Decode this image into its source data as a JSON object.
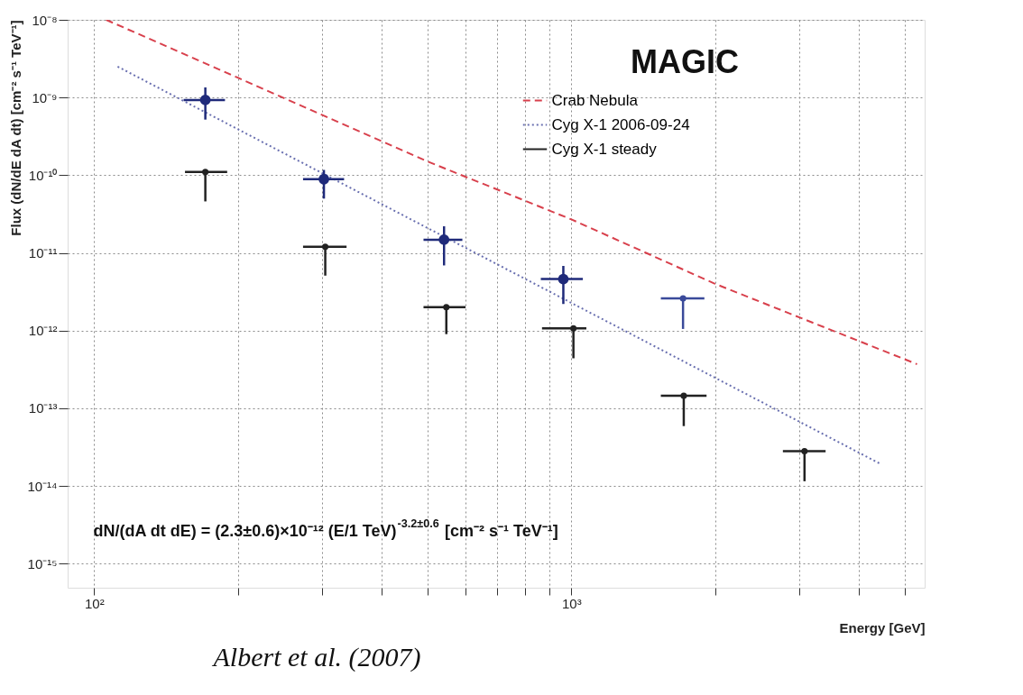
{
  "chart_data": {
    "type": "scatter",
    "title": "MAGIC",
    "xlabel": "Energy [GeV]",
    "ylabel": "Flux (dN/dE dA dt) [cm⁻² s⁻¹ TeV⁻¹]",
    "log": "xy",
    "grid": true,
    "legend": "top right",
    "xlim": [
      88,
      5500
    ],
    "ylim": [
      4.9e-16,
      1e-08
    ],
    "xticks": [
      {
        "value": 100,
        "label": "10²"
      },
      {
        "value": 200,
        "label": null
      },
      {
        "value": 300,
        "label": null
      },
      {
        "value": 400,
        "label": null
      },
      {
        "value": 500,
        "label": null
      },
      {
        "value": 600,
        "label": null
      },
      {
        "value": 700,
        "label": null
      },
      {
        "value": 800,
        "label": null
      },
      {
        "value": 900,
        "label": null
      },
      {
        "value": 1000,
        "label": "10³"
      },
      {
        "value": 2000,
        "label": null
      },
      {
        "value": 3000,
        "label": null
      },
      {
        "value": 4000,
        "label": null
      },
      {
        "value": 5000,
        "label": null
      }
    ],
    "yticks": [
      {
        "value": 1e-08,
        "label": "10⁻⁸"
      },
      {
        "value": 1e-09,
        "label": "10⁻⁹"
      },
      {
        "value": 1e-10,
        "label": "10⁻¹⁰"
      },
      {
        "value": 1e-11,
        "label": "10⁻¹¹"
      },
      {
        "value": 1e-12,
        "label": "10⁻¹²"
      },
      {
        "value": 1e-13,
        "label": "10⁻¹³"
      },
      {
        "value": 1e-14,
        "label": "10⁻¹⁴"
      },
      {
        "value": 1e-15,
        "label": "10⁻¹⁵"
      }
    ],
    "series": [
      {
        "name": "Crab Nebula",
        "type": "line",
        "color": "#d8404c",
        "line_style": "dashed",
        "x": [
          106,
          200,
          500,
          1000,
          2000,
          5300
        ],
        "values": [
          1e-08,
          1.8e-09,
          1.5e-10,
          2.7e-11,
          4e-12,
          3.7e-13
        ]
      },
      {
        "name": "Cyg X-1 2006-09-24",
        "type": "line",
        "color": "#6a70b0",
        "line_style": "dotted",
        "x": [
          112,
          4460
        ],
        "values": [
          2.5e-09,
          1.9e-14
        ]
      },
      {
        "name": "Cyg X-1 steady",
        "color": "#222222",
        "marker": "circle",
        "x": [
          171,
          305,
          547,
          1010,
          1720,
          3080
        ],
        "values": [
          1.1e-10,
          1.2e-11,
          2e-12,
          1.07e-12,
          1.45e-13,
          2.8e-14
        ],
        "errors": [
          [
            4.6e-11,
            1.1e-10
          ],
          [
            5.1e-12,
            1.2e-11
          ],
          [
            9e-13,
            2e-12
          ],
          [
            4.4e-13,
            1.07e-12
          ],
          [
            5.9e-14,
            1.45e-13
          ],
          [
            1.15e-14,
            2.8e-14
          ]
        ],
        "xerrors": [
          [
            155,
            190
          ],
          [
            274,
            338
          ],
          [
            490,
            600
          ],
          [
            868,
            1075
          ],
          [
            1540,
            1920
          ],
          [
            2775,
            3410
          ]
        ]
      },
      {
        "color": "#1f2a7a",
        "marker": "circle",
        "x": [
          171,
          303,
          541,
          962
        ],
        "values": [
          9.3e-10,
          8.9e-11,
          1.48e-11,
          4.6e-12
        ],
        "errors": [
          [
            5.2e-10,
            1.35e-09
          ],
          [
            5e-11,
            1.17e-10
          ],
          [
            6.9e-12,
            2.2e-11
          ],
          [
            2.2e-12,
            6.8e-12
          ]
        ],
        "xerrors": [
          [
            154,
            188
          ],
          [
            274,
            334
          ],
          [
            490,
            591
          ],
          [
            863,
            1057
          ]
        ]
      },
      {
        "color": "#3a4a9a",
        "marker": "circle",
        "x": [
          1714
        ],
        "values": [
          2.6e-12
        ],
        "errors": [
          [
            1.05e-12,
            2.6e-12
          ]
        ],
        "xerrors": [
          [
            1540,
            1900
          ]
        ]
      }
    ],
    "annotations": [
      "dN/(dA dt dE) = (2.3±0.6)×10⁻¹² (E/1 TeV)$^{-3.2±0.6}$ [cm⁻² s⁻¹ TeV⁻¹]",
      "Albert et al. (2007)"
    ]
  }
}
